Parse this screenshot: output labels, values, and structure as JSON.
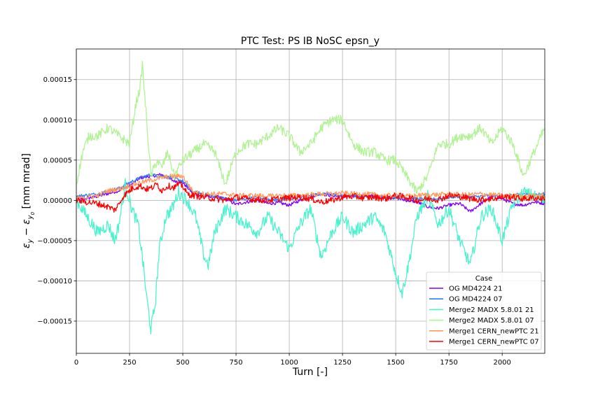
{
  "chart_data": {
    "type": "line",
    "title": "PTC Test: PS IB NoSC epsn_y",
    "xlabel": "Turn [-]",
    "ylabel_main": "ε",
    "ylabel_sub1": "y",
    "ylabel_minus": " − ε",
    "ylabel_sub2": "y",
    "ylabel_sub3": "0",
    "ylabel_unit": " [mm mrad]",
    "xlim": [
      0,
      2200
    ],
    "ylim": [
      -0.00019,
      0.000188
    ],
    "xticks": [
      0,
      250,
      500,
      750,
      1000,
      1250,
      1500,
      1750,
      2000
    ],
    "xtick_labels": [
      "0",
      "250",
      "500",
      "750",
      "1000",
      "1250",
      "1500",
      "1750",
      "2000"
    ],
    "yticks": [
      -0.00015,
      -0.0001,
      -5e-05,
      0,
      5e-05,
      0.0001,
      0.00015
    ],
    "ytick_labels": [
      "−0.00015",
      "−0.00010",
      "−0.00005",
      "0.00000",
      "0.00005",
      "0.00010",
      "0.00015"
    ],
    "grid": true,
    "legend": {
      "title": "Case",
      "position": "lower-right"
    },
    "series": [
      {
        "name": "OG MD4224 21",
        "color": "#8000ff",
        "noise": 2e-06,
        "x": [
          0,
          100,
          200,
          250,
          300,
          350,
          400,
          450,
          500,
          550,
          600,
          650,
          700,
          750,
          800,
          850,
          900,
          950,
          1000,
          1050,
          1100,
          1150,
          1200,
          1250,
          1300,
          1350,
          1400,
          1450,
          1500,
          1550,
          1600,
          1650,
          1700,
          1750,
          1800,
          1850,
          1900,
          1950,
          2000,
          2050,
          2100,
          2150,
          2200
        ],
        "y": [
          0,
          5e-06,
          1.2e-05,
          1.8e-05,
          2.8e-05,
          3e-05,
          3.2e-05,
          2.5e-05,
          2.2e-05,
          8e-06,
          5e-06,
          5e-06,
          2e-06,
          -5e-06,
          -2e-06,
          0.0,
          -4e-06,
          -3e-06,
          -6e-06,
          0.0,
          5e-06,
          8e-06,
          6e-06,
          4e-06,
          5e-06,
          6e-06,
          5e-06,
          4e-06,
          3e-06,
          0.0,
          -2e-06,
          -8e-06,
          -1e-05,
          -6e-06,
          -4e-06,
          -1.4e-05,
          -4e-06,
          5e-06,
          2e-06,
          -4e-06,
          -6e-06,
          -2e-06,
          -4e-06
        ]
      },
      {
        "name": "OG MD4224 07",
        "color": "#2c7ef8",
        "noise": 2e-06,
        "x": [
          0,
          100,
          200,
          250,
          300,
          350,
          400,
          450,
          500,
          550,
          600,
          650,
          700,
          750,
          800,
          850,
          900,
          950,
          1000,
          1050,
          1100,
          1150,
          1200,
          1250,
          1300,
          1350,
          1400,
          1450,
          1500,
          1550,
          1600,
          1650,
          1700,
          1750,
          1800,
          1850,
          1900,
          1950,
          2000,
          2050,
          2100,
          2150,
          2200
        ],
        "y": [
          5e-06,
          8e-06,
          1.5e-05,
          2.2e-05,
          2.8e-05,
          3.2e-05,
          3e-05,
          2.8e-05,
          2.4e-05,
          1e-05,
          8e-06,
          4e-06,
          2e-06,
          0.0,
          2e-06,
          4e-06,
          2e-06,
          0.0,
          2e-06,
          4e-06,
          6e-06,
          8e-06,
          8e-06,
          6e-06,
          6e-06,
          5e-06,
          4e-06,
          4e-06,
          4e-06,
          3e-06,
          2e-06,
          1e-06,
          2e-06,
          4e-06,
          5e-06,
          4e-06,
          5e-06,
          6e-06,
          5e-06,
          6e-06,
          8e-06,
          7e-06,
          8e-06
        ]
      },
      {
        "name": "Merge2 MADX 5.8.01 21",
        "color": "#4df3ce",
        "noise": 8e-06,
        "x": [
          0,
          50,
          100,
          150,
          180,
          200,
          230,
          260,
          290,
          310,
          330,
          350,
          370,
          390,
          420,
          450,
          480,
          520,
          560,
          600,
          620,
          650,
          700,
          750,
          800,
          850,
          900,
          950,
          1000,
          1050,
          1100,
          1150,
          1200,
          1250,
          1300,
          1350,
          1400,
          1450,
          1500,
          1530,
          1560,
          1600,
          1650,
          1700,
          1750,
          1800,
          1850,
          1900,
          1950,
          2000,
          2050,
          2100,
          2150,
          2200
        ],
        "y": [
          0.0,
          -2e-05,
          -4e-05,
          -3e-05,
          -5e-05,
          -3e-05,
          2e-05,
          -1e-05,
          -3e-05,
          -7e-05,
          -0.00012,
          -0.00016,
          -0.00013,
          -6e-05,
          -2e-05,
          -1e-05,
          1e-05,
          0.0,
          -2e-05,
          -7e-05,
          -8e-05,
          -4e-05,
          -1e-05,
          -2e-05,
          -3e-05,
          -4e-05,
          -2e-05,
          -4e-05,
          -6e-05,
          -3e-05,
          -1e-05,
          -7e-05,
          -4e-05,
          -2e-05,
          -4e-05,
          -3e-05,
          -2e-05,
          -4e-05,
          -9e-05,
          -0.000115,
          -8e-05,
          -2e-05,
          5e-06,
          -3e-05,
          -1e-05,
          -5e-05,
          -8e-05,
          -2e-05,
          -1e-05,
          -5e-05,
          -5e-06,
          1e-05,
          5e-06,
          0.0
        ]
      },
      {
        "name": "Merge2 MADX 5.8.01 07",
        "color": "#b2f396",
        "noise": 6e-06,
        "x": [
          0,
          30,
          60,
          100,
          150,
          200,
          250,
          280,
          300,
          310,
          330,
          350,
          380,
          400,
          430,
          460,
          500,
          550,
          600,
          650,
          700,
          750,
          800,
          850,
          900,
          950,
          1000,
          1050,
          1100,
          1150,
          1200,
          1250,
          1300,
          1350,
          1400,
          1450,
          1500,
          1550,
          1600,
          1650,
          1700,
          1750,
          1800,
          1850,
          1900,
          1950,
          2000,
          2050,
          2100,
          2150,
          2200
        ],
        "y": [
          2e-05,
          6e-05,
          8e-05,
          8e-05,
          9e-05,
          8e-05,
          7e-05,
          0.00012,
          0.00014,
          0.00017,
          0.0001,
          3e-05,
          5e-05,
          4e-05,
          6e-05,
          3e-05,
          5e-05,
          6e-05,
          7e-05,
          6e-05,
          2e-05,
          6e-05,
          7e-05,
          7e-05,
          8e-05,
          9e-05,
          8e-05,
          6e-05,
          7e-05,
          9e-05,
          0.0001,
          0.0001,
          7e-05,
          6e-05,
          6e-05,
          5e-05,
          5e-05,
          3e-05,
          1e-05,
          3e-05,
          7e-05,
          7e-05,
          8e-05,
          8e-05,
          9e-05,
          7e-05,
          9e-05,
          7e-05,
          3e-05,
          6e-05,
          9e-05
        ]
      },
      {
        "name": "Merge1 CERN_newPTC 21",
        "color": "#ff9a5c",
        "noise": 3e-06,
        "x": [
          0,
          50,
          100,
          150,
          200,
          250,
          300,
          350,
          400,
          450,
          500,
          550,
          600,
          650,
          700,
          750,
          800,
          850,
          900,
          950,
          1000,
          1050,
          1100,
          1150,
          1200,
          1250,
          1300,
          1350,
          1400,
          1450,
          1500,
          1550,
          1600,
          1650,
          1700,
          1750,
          1800,
          1850,
          1900,
          1950,
          2000,
          2050,
          2100,
          2150,
          2200
        ],
        "y": [
          2e-06,
          4e-06,
          6e-06,
          1.2e-05,
          1.4e-05,
          1.8e-05,
          2.2e-05,
          2.5e-05,
          2.8e-05,
          3e-05,
          3e-05,
          1e-05,
          8e-06,
          8e-06,
          8e-06,
          6e-06,
          6e-06,
          6e-06,
          5e-06,
          6e-06,
          6e-06,
          6e-06,
          7e-06,
          8e-06,
          8e-06,
          9e-06,
          8e-06,
          8e-06,
          7e-06,
          6e-06,
          6e-06,
          5e-06,
          6e-06,
          7e-06,
          7e-06,
          8e-06,
          7e-06,
          7e-06,
          8e-06,
          7e-06,
          6e-06,
          6e-06,
          5e-06,
          6e-06,
          6e-06
        ]
      },
      {
        "name": "Merge1 CERN_newPTC 07",
        "color": "#ff0000",
        "noise": 4e-06,
        "x": [
          0,
          50,
          100,
          150,
          180,
          200,
          220,
          250,
          270,
          300,
          330,
          350,
          380,
          400,
          430,
          460,
          480,
          500,
          520,
          550,
          600,
          650,
          700,
          750,
          800,
          850,
          900,
          950,
          1000,
          1050,
          1100,
          1150,
          1200,
          1250,
          1300,
          1350,
          1400,
          1450,
          1500,
          1550,
          1600,
          1650,
          1700,
          1750,
          1800,
          1850,
          1900,
          1950,
          2000,
          2050,
          2100,
          2150,
          2200
        ],
        "y": [
          0.0,
          -2e-06,
          -4e-06,
          -8e-06,
          -1.2e-05,
          -5e-06,
          5e-06,
          1.2e-05,
          1.6e-05,
          1.8e-05,
          1.4e-05,
          1.5e-05,
          2e-05,
          1.2e-05,
          1.8e-05,
          1.6e-05,
          2e-05,
          1.8e-05,
          8e-06,
          6e-06,
          4e-06,
          2e-06,
          0.0,
          4e-06,
          2e-06,
          1e-06,
          0.0,
          2e-06,
          3e-06,
          4e-06,
          2e-06,
          -2e-06,
          0.0,
          4e-06,
          5e-06,
          3e-06,
          4e-06,
          2e-06,
          6e-06,
          4e-06,
          0.0,
          2e-06,
          1e-06,
          6e-06,
          5e-06,
          2e-06,
          1e-06,
          2e-06,
          4e-06,
          4e-06,
          2e-06,
          3e-06,
          2e-06
        ]
      }
    ]
  }
}
